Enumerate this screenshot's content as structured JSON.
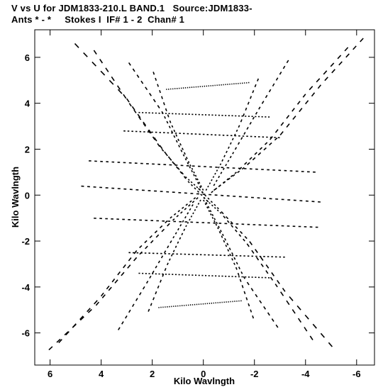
{
  "header": {
    "line1": "V vs U for JDM1833-210.L BAND.1   Source:JDM1833-",
    "line2": "Ants * - *     Stokes I  IF# 1 - 2  Chan# 1"
  },
  "chart_data": {
    "type": "scatter",
    "title": "V vs U for JDM1833-210.L BAND.1   Source:JDM1833-",
    "subtitle": "Ants * - *     Stokes I  IF# 1 - 2  Chan# 1",
    "xlabel": "Kilo Wavlngth",
    "ylabel": "Kilo Wavlngth",
    "xlim": [
      6.6,
      -6.7
    ],
    "ylim": [
      -7.4,
      7.2
    ],
    "x_reversed": true,
    "xticks": [
      6,
      4,
      2,
      0,
      -2,
      -4,
      -6
    ],
    "yticks": [
      -6,
      -4,
      -2,
      0,
      2,
      4,
      6
    ],
    "xtick_labels": [
      "6",
      "4",
      "2",
      "0",
      "-2",
      "-4",
      "-6"
    ],
    "ytick_labels": [
      "-6",
      "-4",
      "-2",
      "0",
      "2",
      "4",
      "6"
    ],
    "marker_color": "#000000",
    "background": "#ffffff",
    "grid": false,
    "series": [
      {
        "tracks": [
          {
            "u": [
              5.2,
              3.0,
              1.6,
              0.6,
              -0.2
            ],
            "v": [
              6.8,
              4.2,
              2.0,
              0.6,
              -0.3
            ]
          },
          {
            "u": [
              -6.4,
              -4.6,
              -3.0,
              -1.6,
              -0.4
            ],
            "v": [
              7.0,
              4.8,
              2.6,
              1.2,
              0.2
            ]
          },
          {
            "u": [
              4.4,
              2.9,
              1.7,
              0.7,
              0.0
            ],
            "v": [
              6.5,
              4.0,
              2.1,
              0.8,
              0.1
            ]
          },
          {
            "u": [
              -5.8,
              -4.0,
              -2.6,
              -1.3,
              -0.3
            ],
            "v": [
              6.6,
              4.4,
              2.4,
              1.0,
              0.1
            ]
          },
          {
            "u": [
              3.0,
              1.6,
              0.8,
              0.1
            ],
            "v": [
              5.9,
              3.6,
              1.8,
              0.3
            ]
          },
          {
            "u": [
              -3.4,
              -2.2,
              -1.2,
              -0.4
            ],
            "v": [
              6.0,
              3.8,
              1.9,
              0.4
            ]
          },
          {
            "u": [
              2.0,
              1.3,
              0.6,
              0.0
            ],
            "v": [
              5.5,
              3.2,
              1.5,
              0.2
            ]
          },
          {
            "u": [
              -2.2,
              -1.4,
              -0.7,
              -0.1
            ],
            "v": [
              5.2,
              3.0,
              1.4,
              0.2
            ]
          },
          {
            "u": [
              6.2,
              4.2,
              2.6,
              1.2,
              0.2
            ],
            "v": [
              -6.9,
              -4.8,
              -2.7,
              -1.1,
              -0.1
            ]
          },
          {
            "u": [
              -5.2,
              -3.2,
              -1.8,
              -0.6,
              0.2
            ],
            "v": [
              -6.8,
              -4.2,
              -2.0,
              -0.6,
              0.3
            ]
          },
          {
            "u": [
              5.8,
              4.0,
              2.6,
              1.3,
              0.3
            ],
            "v": [
              -6.6,
              -4.4,
              -2.4,
              -1.0,
              -0.1
            ]
          },
          {
            "u": [
              -4.4,
              -2.9,
              -1.7,
              -0.7,
              0.0
            ],
            "v": [
              -6.5,
              -4.0,
              -2.1,
              -0.8,
              -0.1
            ]
          },
          {
            "u": [
              3.4,
              2.2,
              1.2,
              0.4
            ],
            "v": [
              -6.0,
              -3.8,
              -1.9,
              -0.4
            ]
          },
          {
            "u": [
              -3.0,
              -1.6,
              -0.8,
              -0.1
            ],
            "v": [
              -5.9,
              -3.6,
              -1.8,
              -0.3
            ]
          },
          {
            "u": [
              2.2,
              1.4,
              0.7,
              0.1
            ],
            "v": [
              -5.2,
              -3.0,
              -1.4,
              -0.2
            ]
          },
          {
            "u": [
              -2.0,
              -1.3,
              -0.6,
              0.0
            ],
            "v": [
              -5.5,
              -3.2,
              -1.5,
              -0.2
            ]
          }
        ],
        "bands": [
          {
            "u": [
              4.6,
              -4.4
            ],
            "v": [
              1.5,
              1.0
            ]
          },
          {
            "u": [
              4.9,
              -4.6
            ],
            "v": [
              0.4,
              -0.3
            ]
          },
          {
            "u": [
              3.2,
              -3.0
            ],
            "v": [
              2.8,
              2.5
            ]
          },
          {
            "u": [
              2.6,
              -2.6
            ],
            "v": [
              3.6,
              3.4
            ]
          },
          {
            "u": [
              4.4,
              -4.5
            ],
            "v": [
              -1.0,
              -1.4
            ]
          },
          {
            "u": [
              3.0,
              -3.2
            ],
            "v": [
              -2.5,
              -2.7
            ]
          },
          {
            "u": [
              2.6,
              -2.6
            ],
            "v": [
              -3.4,
              -3.6
            ]
          },
          {
            "u": [
              1.5,
              -1.8
            ],
            "v": [
              4.6,
              4.9
            ]
          },
          {
            "u": [
              1.8,
              -1.5
            ],
            "v": [
              -4.9,
              -4.6
            ]
          }
        ]
      }
    ]
  }
}
